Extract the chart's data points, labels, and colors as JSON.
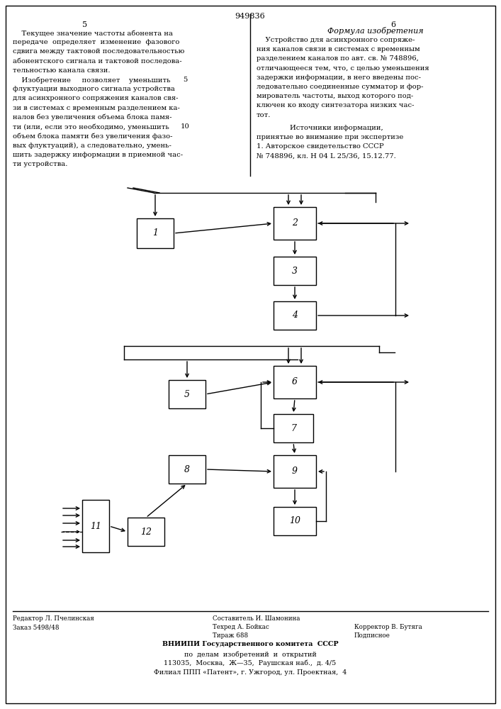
{
  "title_number": "949836",
  "page_left": "5",
  "page_right": "6",
  "left_col_lines": [
    "    Текущее значение частоты абонента на",
    "передаче  определяет  изменение  фазового",
    "сдвига между тактовой последовательностью",
    "абонентского сигнала и тактовой последова-",
    "тельностью канала связи.",
    "    Изобретение     позволяет    уменьшить",
    "флуктуации выходного сигнала устройства",
    "для асинхронного сопряжения каналов свя-",
    "зи в системах с временным разделением ка-",
    "налов без увеличения объема блока памя-",
    "ти (или, если это необходимо, уменьшить",
    "объем блока памяти без увеличения фазо-",
    "вых флуктуаций), а следовательно, умень-",
    "шить задержку информации в приемной час-",
    "ти устройства."
  ],
  "right_col_header": "Формула изобретения",
  "right_col_lines": [
    "    Устройство для асинхронного сопряже-",
    "ния каналов связи в системах с временным",
    "разделением каналов по авт. св. № 748896,",
    "отличающееся тем, что, с целью уменьшения",
    "задержки информации, в него введены пос-",
    "ледовательно соединенные сумматор и фор-",
    "мирователь частоты, выход которого под-",
    "ключен ко входу синтезатора низких час-",
    "тот."
  ],
  "sources_header": "Источники информации,",
  "sources_lines": [
    "принятые во внимание при экспертизе",
    "1. Авторское свидетельство СССР",
    "№ 748896, кл. Н 04 L 25/36, 15.12.77."
  ],
  "footer_left1": "Редактор Л. Пчелинская",
  "footer_left2": "Заказ 5498/48",
  "footer_mid1": "Составитель И. Шамонина",
  "footer_mid2": "Техред А. Бойкас",
  "footer_mid3": "Тираж 688",
  "footer_right1": "Корректор В. Бутяга",
  "footer_right2": "Подписное",
  "vniipi1": "ВНИИПИ Государственного комитета  СССР",
  "vniipi2": "по  делам  изобретений  и  открытий",
  "vniipi3": "113035,  Москва,  Ж—35,  Раушская наб.,  д. 4/5",
  "vniipi4": "Филиал ППП «Патент», г. Ужгород, ул. Проектная,  4"
}
